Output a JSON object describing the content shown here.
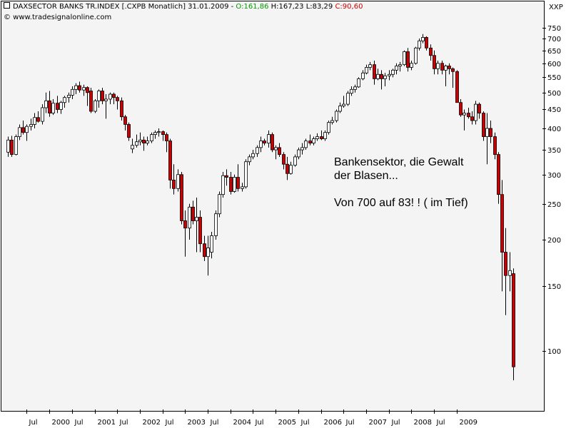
{
  "header": {
    "title": "DAXSECTOR BANKS TR.INDEX [.CXPB  Monatlich] 31.01.2009 - ",
    "open": "O:161,86",
    "high_low": " H:167,23 L:83,29 ",
    "close": "C:90,60",
    "credit": "© www.tradesignalonline.com",
    "ticker": "XXP"
  },
  "annotation": {
    "line1": "Bankensektor, die Gewalt",
    "line2": "der Blasen...",
    "line3": "",
    "line4": "Von 700 auf 83! ! ( im Tief)"
  },
  "chart_data": {
    "type": "candlestick",
    "title": "DAXSECTOR BANKS TR.INDEX [.CXPB  Monatlich] 31.01.2009",
    "y_scale": "log",
    "ylim": [
      74,
      780
    ],
    "yticks": [
      100,
      150,
      200,
      250,
      300,
      350,
      400,
      450,
      500,
      550,
      600,
      650,
      700,
      750
    ],
    "xtick_labels": [
      "Jul",
      "2000",
      "Jul",
      "2001",
      "Jul",
      "2002",
      "Jul",
      "2003",
      "Jul",
      "2004",
      "Jul",
      "2005",
      "Jul",
      "2006",
      "Jul",
      "2007",
      "Jul",
      "2008",
      "Jul",
      "2009"
    ],
    "up_color": "#ffffff",
    "down_color": "#cc0000",
    "candles": [
      {
        "date": "1999-02",
        "o": 345,
        "h": 380,
        "l": 335,
        "c": 372
      },
      {
        "date": "1999-03",
        "o": 372,
        "h": 382,
        "l": 335,
        "c": 340
      },
      {
        "date": "1999-04",
        "o": 340,
        "h": 385,
        "l": 338,
        "c": 380
      },
      {
        "date": "1999-05",
        "o": 380,
        "h": 410,
        "l": 372,
        "c": 402
      },
      {
        "date": "1999-06",
        "o": 402,
        "h": 420,
        "l": 385,
        "c": 390
      },
      {
        "date": "1999-07",
        "o": 390,
        "h": 410,
        "l": 370,
        "c": 405
      },
      {
        "date": "1999-08",
        "o": 405,
        "h": 425,
        "l": 395,
        "c": 410
      },
      {
        "date": "1999-09",
        "o": 410,
        "h": 440,
        "l": 400,
        "c": 428
      },
      {
        "date": "1999-10",
        "o": 428,
        "h": 445,
        "l": 415,
        "c": 418
      },
      {
        "date": "1999-11",
        "o": 418,
        "h": 465,
        "l": 410,
        "c": 455
      },
      {
        "date": "1999-12",
        "o": 455,
        "h": 500,
        "l": 440,
        "c": 475
      },
      {
        "date": "2000-01",
        "o": 475,
        "h": 505,
        "l": 430,
        "c": 440
      },
      {
        "date": "2000-02",
        "o": 440,
        "h": 480,
        "l": 435,
        "c": 468
      },
      {
        "date": "2000-03",
        "o": 468,
        "h": 490,
        "l": 440,
        "c": 450
      },
      {
        "date": "2000-04",
        "o": 450,
        "h": 475,
        "l": 438,
        "c": 470
      },
      {
        "date": "2000-05",
        "o": 470,
        "h": 490,
        "l": 455,
        "c": 485
      },
      {
        "date": "2000-06",
        "o": 485,
        "h": 500,
        "l": 470,
        "c": 492
      },
      {
        "date": "2000-07",
        "o": 492,
        "h": 520,
        "l": 480,
        "c": 510
      },
      {
        "date": "2000-08",
        "o": 510,
        "h": 530,
        "l": 495,
        "c": 522
      },
      {
        "date": "2000-09",
        "o": 522,
        "h": 535,
        "l": 500,
        "c": 508
      },
      {
        "date": "2000-10",
        "o": 508,
        "h": 525,
        "l": 490,
        "c": 516
      },
      {
        "date": "2000-11",
        "o": 516,
        "h": 520,
        "l": 460,
        "c": 500
      },
      {
        "date": "2000-12",
        "o": 505,
        "h": 515,
        "l": 440,
        "c": 445
      },
      {
        "date": "2001-01",
        "o": 445,
        "h": 480,
        "l": 440,
        "c": 475
      },
      {
        "date": "2001-02",
        "o": 475,
        "h": 510,
        "l": 455,
        "c": 505
      },
      {
        "date": "2001-03",
        "o": 505,
        "h": 515,
        "l": 465,
        "c": 475
      },
      {
        "date": "2001-04",
        "o": 475,
        "h": 495,
        "l": 425,
        "c": 480
      },
      {
        "date": "2001-05",
        "o": 480,
        "h": 500,
        "l": 465,
        "c": 495
      },
      {
        "date": "2001-06",
        "o": 495,
        "h": 500,
        "l": 465,
        "c": 485
      },
      {
        "date": "2001-07",
        "o": 485,
        "h": 490,
        "l": 450,
        "c": 475
      },
      {
        "date": "2001-08",
        "o": 475,
        "h": 485,
        "l": 420,
        "c": 430
      },
      {
        "date": "2001-09",
        "o": 430,
        "h": 435,
        "l": 395,
        "c": 410
      },
      {
        "date": "2001-10",
        "o": 410,
        "h": 415,
        "l": 370,
        "c": 378
      },
      {
        "date": "2001-11",
        "o": 352,
        "h": 375,
        "l": 343,
        "c": 360
      },
      {
        "date": "2001-12",
        "o": 360,
        "h": 385,
        "l": 355,
        "c": 368
      },
      {
        "date": "2002-01",
        "o": 368,
        "h": 390,
        "l": 360,
        "c": 372
      },
      {
        "date": "2002-02",
        "o": 372,
        "h": 380,
        "l": 348,
        "c": 365
      },
      {
        "date": "2002-03",
        "o": 365,
        "h": 380,
        "l": 360,
        "c": 370
      },
      {
        "date": "2002-04",
        "o": 370,
        "h": 390,
        "l": 365,
        "c": 385
      },
      {
        "date": "2002-05",
        "o": 385,
        "h": 395,
        "l": 375,
        "c": 390
      },
      {
        "date": "2002-06",
        "o": 390,
        "h": 400,
        "l": 380,
        "c": 392
      },
      {
        "date": "2002-07",
        "o": 392,
        "h": 395,
        "l": 370,
        "c": 385
      },
      {
        "date": "2002-08",
        "o": 385,
        "h": 390,
        "l": 345,
        "c": 370
      },
      {
        "date": "2002-09",
        "o": 370,
        "h": 375,
        "l": 275,
        "c": 290
      },
      {
        "date": "2002-10",
        "o": 290,
        "h": 320,
        "l": 265,
        "c": 275
      },
      {
        "date": "2002-11",
        "o": 275,
        "h": 310,
        "l": 270,
        "c": 300
      },
      {
        "date": "2002-12",
        "o": 300,
        "h": 305,
        "l": 220,
        "c": 225
      },
      {
        "date": "2003-01",
        "o": 225,
        "h": 240,
        "l": 180,
        "c": 215
      },
      {
        "date": "2003-02",
        "o": 215,
        "h": 250,
        "l": 200,
        "c": 245
      },
      {
        "date": "2003-03",
        "o": 245,
        "h": 255,
        "l": 220,
        "c": 225
      },
      {
        "date": "2003-04",
        "o": 225,
        "h": 260,
        "l": 185,
        "c": 230
      },
      {
        "date": "2003-05",
        "o": 230,
        "h": 240,
        "l": 185,
        "c": 195
      },
      {
        "date": "2003-06",
        "o": 195,
        "h": 205,
        "l": 175,
        "c": 180
      },
      {
        "date": "2003-07",
        "o": 180,
        "h": 205,
        "l": 160,
        "c": 190
      },
      {
        "date": "2003-08",
        "o": 185,
        "h": 210,
        "l": 178,
        "c": 205
      },
      {
        "date": "2003-09",
        "o": 205,
        "h": 240,
        "l": 200,
        "c": 235
      },
      {
        "date": "2003-10",
        "o": 235,
        "h": 270,
        "l": 230,
        "c": 265
      },
      {
        "date": "2003-11",
        "o": 265,
        "h": 305,
        "l": 260,
        "c": 298
      },
      {
        "date": "2003-12",
        "o": 298,
        "h": 310,
        "l": 280,
        "c": 295
      },
      {
        "date": "2004-01",
        "o": 295,
        "h": 305,
        "l": 265,
        "c": 270
      },
      {
        "date": "2004-02",
        "o": 270,
        "h": 300,
        "l": 268,
        "c": 295
      },
      {
        "date": "2004-03",
        "o": 295,
        "h": 320,
        "l": 270,
        "c": 275
      },
      {
        "date": "2004-04",
        "o": 275,
        "h": 285,
        "l": 270,
        "c": 278
      },
      {
        "date": "2004-05",
        "o": 278,
        "h": 330,
        "l": 275,
        "c": 325
      },
      {
        "date": "2004-06",
        "o": 325,
        "h": 340,
        "l": 318,
        "c": 335
      },
      {
        "date": "2004-07",
        "o": 335,
        "h": 350,
        "l": 330,
        "c": 342
      },
      {
        "date": "2004-08",
        "o": 342,
        "h": 360,
        "l": 335,
        "c": 355
      },
      {
        "date": "2004-09",
        "o": 355,
        "h": 380,
        "l": 345,
        "c": 370
      },
      {
        "date": "2004-10",
        "o": 370,
        "h": 375,
        "l": 360,
        "c": 365
      },
      {
        "date": "2004-11",
        "o": 365,
        "h": 395,
        "l": 355,
        "c": 385
      },
      {
        "date": "2004-12",
        "o": 385,
        "h": 390,
        "l": 345,
        "c": 350
      },
      {
        "date": "2005-01",
        "o": 350,
        "h": 360,
        "l": 330,
        "c": 355
      },
      {
        "date": "2005-02",
        "o": 355,
        "h": 365,
        "l": 335,
        "c": 340
      },
      {
        "date": "2005-03",
        "o": 340,
        "h": 345,
        "l": 310,
        "c": 320
      },
      {
        "date": "2005-04",
        "o": 320,
        "h": 335,
        "l": 290,
        "c": 302
      },
      {
        "date": "2005-05",
        "o": 302,
        "h": 325,
        "l": 300,
        "c": 318
      },
      {
        "date": "2005-06",
        "o": 318,
        "h": 340,
        "l": 315,
        "c": 335
      },
      {
        "date": "2005-07",
        "o": 335,
        "h": 355,
        "l": 330,
        "c": 350
      },
      {
        "date": "2005-08",
        "o": 350,
        "h": 365,
        "l": 340,
        "c": 355
      },
      {
        "date": "2005-09",
        "o": 355,
        "h": 375,
        "l": 350,
        "c": 370
      },
      {
        "date": "2005-10",
        "o": 370,
        "h": 385,
        "l": 360,
        "c": 365
      },
      {
        "date": "2005-11",
        "o": 365,
        "h": 380,
        "l": 360,
        "c": 375
      },
      {
        "date": "2005-12",
        "o": 375,
        "h": 388,
        "l": 370,
        "c": 380
      },
      {
        "date": "2006-01",
        "o": 380,
        "h": 395,
        "l": 372,
        "c": 375
      },
      {
        "date": "2006-02",
        "o": 375,
        "h": 395,
        "l": 370,
        "c": 390
      },
      {
        "date": "2006-03",
        "o": 390,
        "h": 420,
        "l": 385,
        "c": 415
      },
      {
        "date": "2006-04",
        "o": 415,
        "h": 430,
        "l": 410,
        "c": 420
      },
      {
        "date": "2006-05",
        "o": 420,
        "h": 450,
        "l": 415,
        "c": 445
      },
      {
        "date": "2006-06",
        "o": 445,
        "h": 470,
        "l": 440,
        "c": 460
      },
      {
        "date": "2006-07",
        "o": 460,
        "h": 490,
        "l": 455,
        "c": 465
      },
      {
        "date": "2006-08",
        "o": 465,
        "h": 505,
        "l": 460,
        "c": 498
      },
      {
        "date": "2006-09",
        "o": 498,
        "h": 520,
        "l": 490,
        "c": 510
      },
      {
        "date": "2006-10",
        "o": 510,
        "h": 525,
        "l": 500,
        "c": 518
      },
      {
        "date": "2006-11",
        "o": 518,
        "h": 550,
        "l": 515,
        "c": 545
      },
      {
        "date": "2006-12",
        "o": 545,
        "h": 575,
        "l": 540,
        "c": 565
      },
      {
        "date": "2007-01",
        "o": 565,
        "h": 595,
        "l": 560,
        "c": 585
      },
      {
        "date": "2007-02",
        "o": 585,
        "h": 605,
        "l": 575,
        "c": 595
      },
      {
        "date": "2007-03",
        "o": 595,
        "h": 610,
        "l": 525,
        "c": 545
      },
      {
        "date": "2007-04",
        "o": 545,
        "h": 580,
        "l": 540,
        "c": 560
      },
      {
        "date": "2007-05",
        "o": 560,
        "h": 575,
        "l": 510,
        "c": 545
      },
      {
        "date": "2007-06",
        "o": 545,
        "h": 565,
        "l": 520,
        "c": 555
      },
      {
        "date": "2007-07",
        "o": 555,
        "h": 575,
        "l": 540,
        "c": 560
      },
      {
        "date": "2007-08",
        "o": 560,
        "h": 580,
        "l": 550,
        "c": 575
      },
      {
        "date": "2007-09",
        "o": 575,
        "h": 600,
        "l": 560,
        "c": 590
      },
      {
        "date": "2007-10",
        "o": 590,
        "h": 605,
        "l": 570,
        "c": 595
      },
      {
        "date": "2007-11",
        "o": 595,
        "h": 650,
        "l": 590,
        "c": 645
      },
      {
        "date": "2007-12",
        "o": 645,
        "h": 660,
        "l": 570,
        "c": 585
      },
      {
        "date": "2008-01",
        "o": 585,
        "h": 610,
        "l": 575,
        "c": 600
      },
      {
        "date": "2008-02",
        "o": 600,
        "h": 665,
        "l": 595,
        "c": 660
      },
      {
        "date": "2008-03",
        "o": 660,
        "h": 700,
        "l": 650,
        "c": 690
      },
      {
        "date": "2008-04",
        "o": 690,
        "h": 720,
        "l": 680,
        "c": 705
      },
      {
        "date": "2008-05",
        "o": 705,
        "h": 710,
        "l": 650,
        "c": 660
      },
      {
        "date": "2008-06",
        "o": 660,
        "h": 675,
        "l": 610,
        "c": 630
      },
      {
        "date": "2008-07",
        "o": 630,
        "h": 650,
        "l": 560,
        "c": 580
      },
      {
        "date": "2008-08",
        "o": 580,
        "h": 610,
        "l": 560,
        "c": 600
      },
      {
        "date": "2008-09",
        "o": 600,
        "h": 610,
        "l": 560,
        "c": 575
      },
      {
        "date": "2008-10",
        "o": 575,
        "h": 595,
        "l": 520,
        "c": 590
      },
      {
        "date": "2008-11",
        "o": 590,
        "h": 600,
        "l": 560,
        "c": 580
      },
      {
        "date": "2008-12",
        "o": 580,
        "h": 585,
        "l": 515,
        "c": 570
      },
      {
        "date": "2009-01",
        "o": 570,
        "h": 575,
        "l": 470,
        "c": 470
      },
      {
        "date": "2009-02",
        "o": 470,
        "h": 480,
        "l": 430,
        "c": 435
      },
      {
        "date": "2009-03",
        "o": 435,
        "h": 450,
        "l": 395,
        "c": 440
      },
      {
        "date": "2009-04",
        "o": 440,
        "h": 455,
        "l": 425,
        "c": 430
      },
      {
        "date": "2009-05",
        "o": 430,
        "h": 445,
        "l": 410,
        "c": 420
      },
      {
        "date": "2009-06",
        "o": 420,
        "h": 475,
        "l": 410,
        "c": 465
      },
      {
        "date": "2009-07",
        "o": 465,
        "h": 470,
        "l": 425,
        "c": 440
      },
      {
        "date": "2009-08",
        "o": 440,
        "h": 445,
        "l": 370,
        "c": 380
      },
      {
        "date": "2009-09",
        "o": 380,
        "h": 440,
        "l": 320,
        "c": 400
      },
      {
        "date": "2009-10",
        "o": 400,
        "h": 420,
        "l": 365,
        "c": 380
      },
      {
        "date": "2009-11",
        "o": 380,
        "h": 390,
        "l": 330,
        "c": 340
      },
      {
        "date": "2009-12",
        "o": 340,
        "h": 345,
        "l": 250,
        "c": 265
      },
      {
        "date": "2010-01",
        "o": 265,
        "h": 290,
        "l": 145,
        "c": 185
      },
      {
        "date": "2010-02",
        "o": 185,
        "h": 215,
        "l": 125,
        "c": 160
      },
      {
        "date": "2010-03",
        "o": 160,
        "h": 185,
        "l": 145,
        "c": 165
      },
      {
        "date": "2010-04",
        "o": 161.86,
        "h": 167.23,
        "l": 83.29,
        "c": 90.6
      }
    ]
  }
}
